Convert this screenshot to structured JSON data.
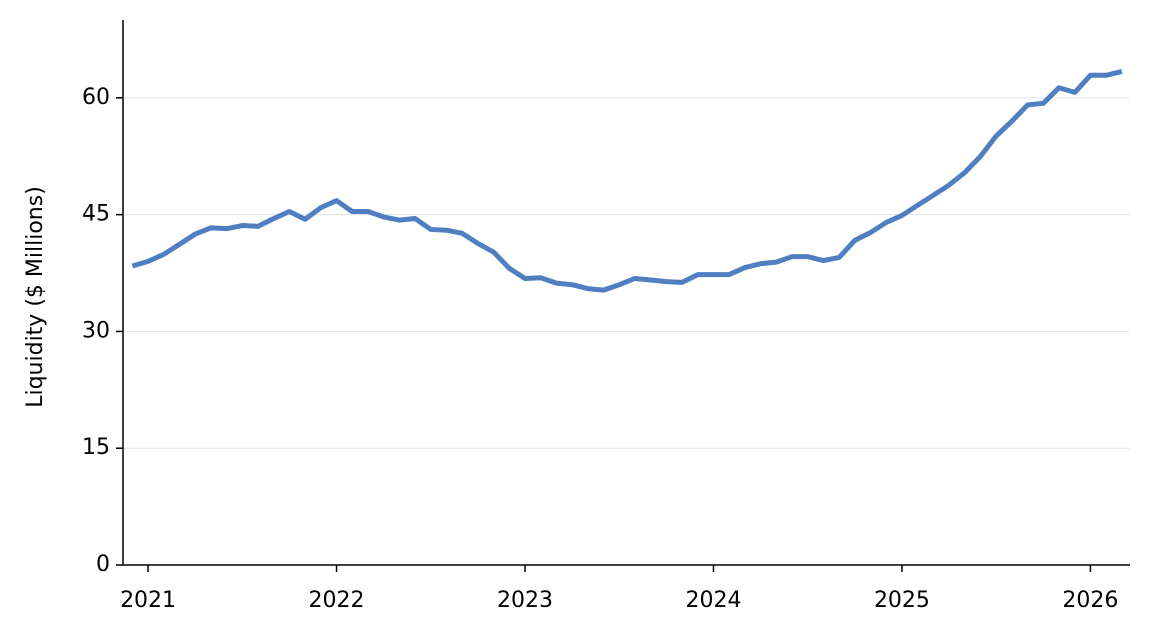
{
  "chart_data": {
    "type": "line",
    "y_label": "Liquidity ($ Millions)",
    "x": [
      2020.917,
      2021.0,
      2021.083,
      2021.167,
      2021.25,
      2021.333,
      2021.417,
      2021.5,
      2021.583,
      2021.667,
      2021.75,
      2021.833,
      2021.917,
      2022.0,
      2022.083,
      2022.167,
      2022.25,
      2022.333,
      2022.417,
      2022.5,
      2022.583,
      2022.667,
      2022.75,
      2022.833,
      2022.917,
      2023.0,
      2023.083,
      2023.167,
      2023.25,
      2023.333,
      2023.417,
      2023.5,
      2023.583,
      2023.667,
      2023.75,
      2023.833,
      2023.917,
      2024.0,
      2024.083,
      2024.167,
      2024.25,
      2024.333,
      2024.417,
      2024.5,
      2024.583,
      2024.667,
      2024.75,
      2024.833,
      2024.917,
      2025.0,
      2025.083,
      2025.167,
      2025.25,
      2025.333,
      2025.417,
      2025.5,
      2025.583,
      2025.667,
      2025.75,
      2025.833,
      2025.917,
      2026.0,
      2026.083,
      2026.167
    ],
    "series": [
      {
        "name": "Liquidity",
        "color": "#4f7fc0",
        "values": [
          38.4,
          39.0,
          39.9,
          41.2,
          42.5,
          43.3,
          43.2,
          43.6,
          43.5,
          44.5,
          45.4,
          44.4,
          45.9,
          46.8,
          45.4,
          45.4,
          44.7,
          44.3,
          44.5,
          43.1,
          43.0,
          42.6,
          41.3,
          40.2,
          38.1,
          36.8,
          36.9,
          36.2,
          36.0,
          35.5,
          35.3,
          36.0,
          36.8,
          36.6,
          36.4,
          36.3,
          37.3,
          37.3,
          37.3,
          38.2,
          38.7,
          38.9,
          39.6,
          39.6,
          39.1,
          39.5,
          41.7,
          42.7,
          44.0,
          44.9,
          46.2,
          47.5,
          48.8,
          50.4,
          52.5,
          55.1,
          57.0,
          59.1,
          59.3,
          61.3,
          60.7,
          62.9,
          62.9,
          63.4
        ]
      }
    ],
    "xlim": [
      2020.867,
      2026.21
    ],
    "xticks": [
      2021,
      2022,
      2023,
      2024,
      2025,
      2026
    ],
    "ylim": [
      0,
      70
    ],
    "yticks": [
      0,
      15,
      30,
      45,
      60
    ],
    "grid": true
  }
}
